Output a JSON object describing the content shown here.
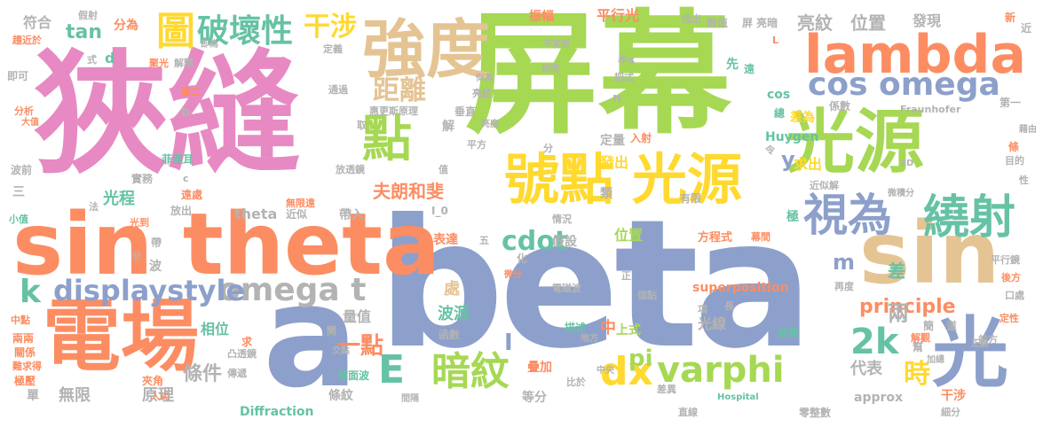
{
  "colors": {
    "pink": "#e78ac3",
    "green": "#a6d854",
    "blue": "#8da0cb",
    "orange": "#fc8d62",
    "teal": "#66c2a5",
    "yellow": "#ffd92f",
    "tan": "#e5c494",
    "gray": "#b3b3b3"
  },
  "words": {
    "beta": "beta",
    "ping_mu": "屏幕",
    "xia_feng": "狹縫",
    "sin_theta": "sin theta",
    "dian_chang": "電場",
    "a": "a",
    "guang_yuan_1": "光源",
    "guang_yuan_2": "光源",
    "hao_dian": "號點",
    "lambda": "lambda",
    "sin": "sin",
    "qiang_du": "強度",
    "shi_wei": "視為",
    "rao_she": "繞射",
    "guang": "光",
    "cos_omega": "cos omega",
    "omega_t": "omega t",
    "displaystyle": "displaystyle",
    "varphi": "varphi",
    "dian": "點",
    "po_huai_xing": "破壞性",
    "tu": "圖",
    "gan_she_1": "干涉",
    "dx": "dx",
    "an_wen": "暗紋",
    "k2": "2k",
    "E": "E",
    "k": "k",
    "ju_li": "距離",
    "yi_dian": "一點",
    "cdot": "cdot",
    "tan": "tan",
    "pi": "pi",
    "principle": "principle",
    "shi": "時",
    "liang_wen": "亮紋",
    "wei_zhi_1": "位置",
    "fu_he": "符合",
    "fen_wei": "分為",
    "zhen_fu": "振幅",
    "ping_xing_guang": "平行光",
    "fa_xian": "發現",
    "fu_lang_he_fei": "夫朗和斐",
    "guang_cheng": "光程",
    "wu_xian": "無限",
    "yuan_li": "原理",
    "tiao_jian": "條件",
    "bo_yuan": "波源",
    "chu": "處",
    "zhong": "中",
    "liang": "兩",
    "cha": "差",
    "m": "m",
    "y": "y",
    "qiu_chu": "求出",
    "fa_chu": "發出",
    "theta": "theta",
    "xiang_wei": "相位",
    "liang_zhi": "量值",
    "dai_biao": "代表",
    "diffraction": "Diffraction",
    "superposition": "superposition",
    "fang_cheng_shi": "方程式",
    "wei_zhi_2": "位置",
    "shang_shi": "上式",
    "die_jia": "疊加",
    "guang_xian": "光線",
    "dai_ru": "帶入",
    "deng_fen": "等分",
    "I": "I",
    "tiao_wen": "條紋",
    "approx": "approx",
    "gan_she_2": "干涉",
    "cos": "cos",
    "huygen": "Huygen",
    "cha_wei": "差為",
    "ding_liang": "定量",
    "I_0": "I_0",
    "jia_she": "假設",
    "biao_da": "表達",
    "xin": "新",
    "jin": "近",
    "fraunhofer": "Fraunhofer",
    "hospital": "Hospital",
    "ping_mu_liang_an": "屏 亮暗",
    "zhao_chu": "找出",
    "shu_zhi": "數值",
    "jia_she_2": "假射",
    "ding_yi": "定義",
    "ji_jin_yu": "趨近於",
    "shi_zi": "式",
    "d": "d",
    "ji_ke": "即可",
    "fen_xi": "分析",
    "da_zhi": "大值",
    "bo_qian": "波前",
    "san": "三",
    "xiao_zhi": "小值",
    "guang_dao": "光到",
    "fei": "非",
    "zhong_dian": "中點",
    "liang_liang": "兩兩",
    "guan_xi": "關係",
    "nan_qiu_de": "難求得",
    "ji_ya": "極壓",
    "dan": "單",
    "b": "b",
    "tu_er": "圖二",
    "fei_nie_er": "菲涅耳",
    "shi_wu": "實務",
    "yuan_chu": "遠處",
    "fang_chu": "放出",
    "wu_xian_yuan": "無限遠",
    "jin_si": "近似",
    "tu_tou_jing": "凸透鏡",
    "chuan_di": "傳遞",
    "jia_jiao": "夾角",
    "ru_shi": "入式",
    "qiu": "求",
    "jiao_mian": "交點",
    "qiu_mian_bo": "球面波",
    "zhong_yang": "中央",
    "bi_lun": "比於",
    "cha_yi": "差異",
    "zhi_xian": "直線",
    "ling_zheng_shu": "零整數",
    "xi_fen": "細分",
    "zheng_shu": "正數",
    "po_huai": "破壞",
    "bang": "幫",
    "ding_xing": "定性",
    "hou_fang": "後方",
    "kou_chu": "口處",
    "qian_fang": "前方",
    "ping_xing_jing": "平行鏡",
    "jie_guan": "解觀",
    "jia_zong": "加總",
    "dao": "道",
    "jian": "簡",
    "zai_du": "再度",
    "ge_dian": "個點",
    "xiang": "項",
    "chang": "長",
    "dian_ci_bo": "電磁波",
    "zheng": "正",
    "miao_shu": "描述",
    "di_fang": "地方",
    "han_shu": "函數",
    "kai": "開",
    "jian_ge": "間隔",
    "wei_fen": "微分",
    "hua": "化",
    "wu": "五",
    "qing_kuang": "情況",
    "lei": "類",
    "bo": "波",
    "dai": "帶",
    "fa": "法",
    "you_xian": "有限",
    "wei_ji_fen": "微積分",
    "jin_si_jie": "近似解",
    "mu_de": "目的",
    "xing": "性",
    "er_d": "2D",
    "ji": "極",
    "tiao": "條",
    "fu_jian": "幕間",
    "zong": "總",
    "ling_xing": "令",
    "xi_shu": "係數",
    "di_yi": "第一",
    "bu_ding_xing": "不定型",
    "ji_wei": "即為",
    "ju_guang": "聚光",
    "jie_shi": "解釋",
    "tong_guo": "通過",
    "hui_geng_si": "惠更斯原理",
    "chui_zhi": "垂直",
    "fang_tou_jing": "放透鏡",
    "xian": "先",
    "yuan": "遠",
    "ba_shi": "把式",
    "xiang_jian": "相間",
    "si_wei": "似為",
    "liang_wen_2": "亮紋",
    "liang_du": "亮度",
    "qu": "取",
    "ping_fang": "平方",
    "fen": "分",
    "zhi": "值",
    "jie": "解",
    "ban_s": "半s",
    "n": "n",
    "c": "c",
    "L": "L",
    "ying": "藉由",
    "ru_she": "入射"
  }
}
